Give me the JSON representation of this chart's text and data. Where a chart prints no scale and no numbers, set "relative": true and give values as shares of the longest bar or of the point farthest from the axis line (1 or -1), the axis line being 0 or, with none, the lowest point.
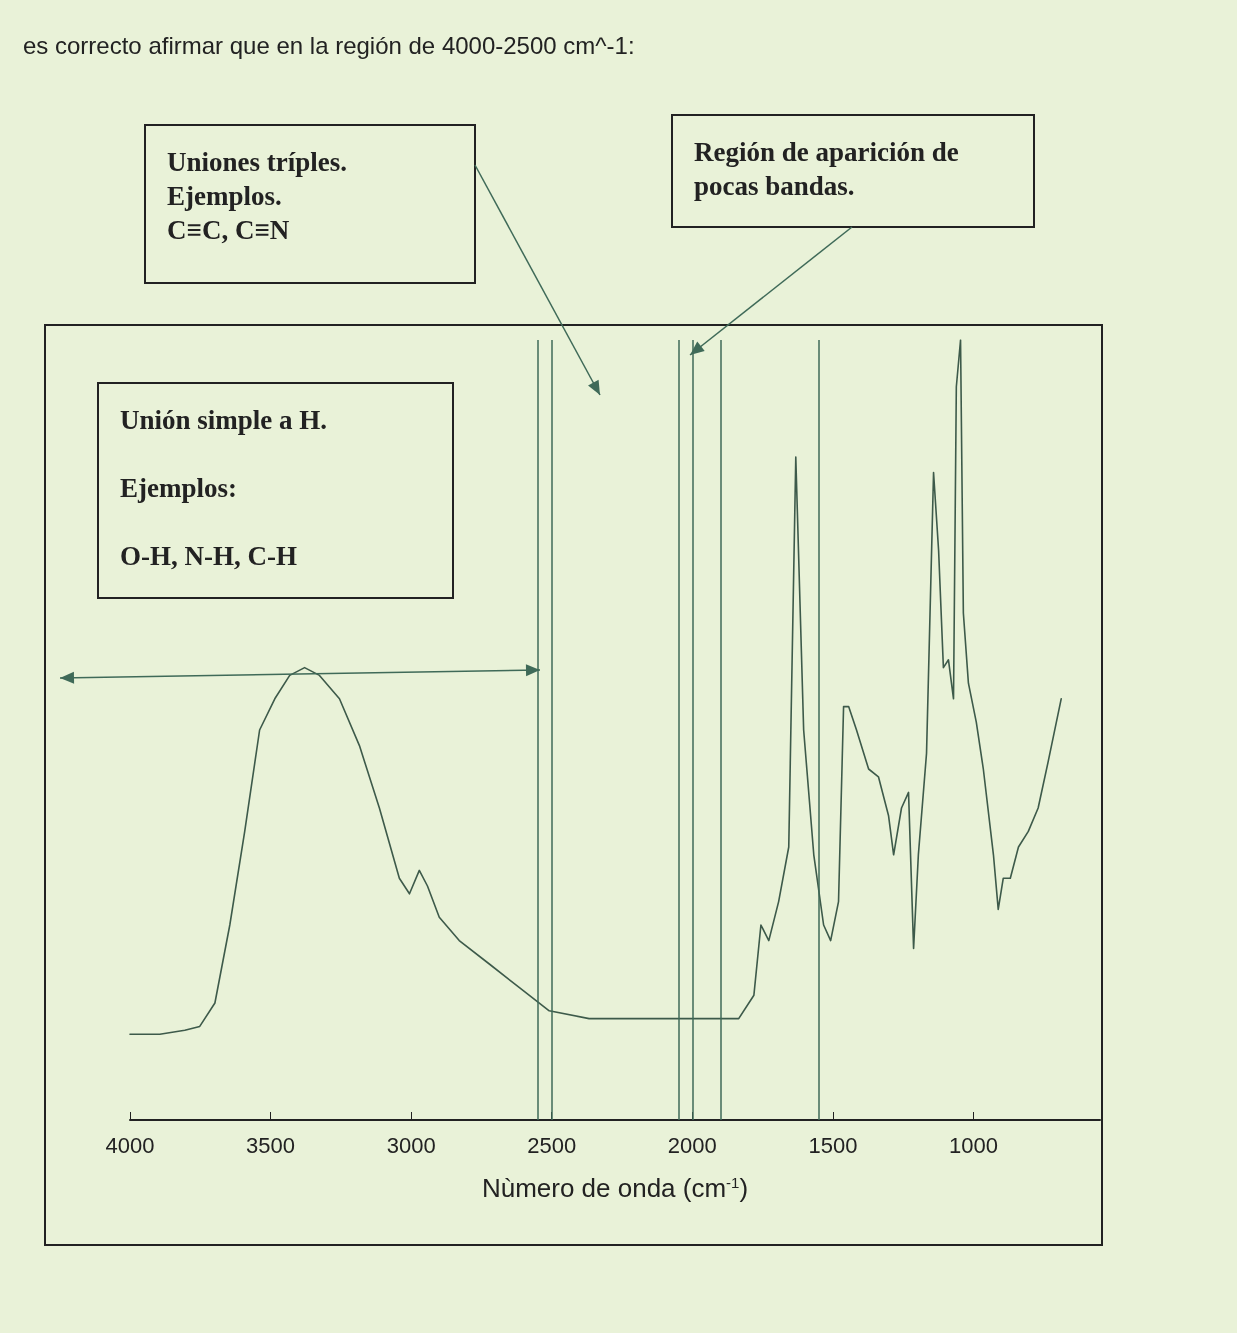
{
  "chart_data": {
    "type": "line",
    "title": "es correcto afirmar que en la región de 4000-2500 cm^-1:",
    "xlabel": "Nùmero de onda (cm$^{-1}$)",
    "relative": true,
    "xlim": [
      4000,
      550
    ],
    "xticks": [
      4000,
      3500,
      3000,
      2500,
      2000,
      1500,
      1000
    ],
    "grid": false,
    "marker": "none",
    "line_style": "solid",
    "annotations": [
      "Uniones tríples.\nEjemplos.\nC≡C, C≡N",
      "Región de aparición de\npocas bandas.",
      "Unión simple a H.\n\nEjemplos:\n\nO-H, N-H, C-H"
    ],
    "ref_lines": [
      {
        "axis": "x",
        "value": 2550,
        "color": "#3f6a58"
      },
      {
        "axis": "x",
        "value": 2500,
        "color": "#3f6a58"
      },
      {
        "axis": "x",
        "value": 2050,
        "color": "#3f6a58"
      },
      {
        "axis": "x",
        "value": 2000,
        "color": "#3f6a58"
      },
      {
        "axis": "x",
        "value": 1900,
        "color": "#3f6a58"
      },
      {
        "axis": "x",
        "value": 1550,
        "color": "#3f6a58"
      }
    ],
    "series": [
      {
        "color": "#3d5a4a",
        "x": [
          4000,
          3894,
          3805,
          3752,
          3698,
          3645,
          3592,
          3539,
          3485,
          3432,
          3379,
          3326,
          3255,
          3184,
          3113,
          3042,
          3006,
          2971,
          2942,
          2900,
          2829,
          2722,
          2616,
          2509,
          2367,
          2260,
          2048,
          1835,
          1781,
          1756,
          1728,
          1693,
          1657,
          1632,
          1604,
          1568,
          1533,
          1508,
          1480,
          1462,
          1444,
          1416,
          1373,
          1338,
          1302,
          1284,
          1256,
          1231,
          1213,
          1196,
          1167,
          1142,
          1124,
          1107,
          1089,
          1071,
          1061,
          1046,
          1036,
          1018,
          990,
          965,
          929,
          912,
          894,
          869,
          840,
          805,
          770,
          734,
          688
        ],
        "values": [
          0.11,
          0.11,
          0.115,
          0.12,
          0.15,
          0.25,
          0.37,
          0.5,
          0.54,
          0.57,
          0.58,
          0.57,
          0.54,
          0.48,
          0.4,
          0.31,
          0.29,
          0.32,
          0.3,
          0.26,
          0.23,
          0.2,
          0.17,
          0.14,
          0.13,
          0.13,
          0.13,
          0.13,
          0.16,
          0.25,
          0.23,
          0.28,
          0.35,
          0.85,
          0.5,
          0.34,
          0.25,
          0.23,
          0.28,
          0.53,
          0.53,
          0.5,
          0.45,
          0.44,
          0.39,
          0.34,
          0.4,
          0.42,
          0.22,
          0.34,
          0.47,
          0.83,
          0.73,
          0.58,
          0.59,
          0.54,
          0.94,
          1,
          0.65,
          0.56,
          0.51,
          0.45,
          0.34,
          0.27,
          0.31,
          0.31,
          0.35,
          0.37,
          0.4,
          0.46,
          0.54
        ]
      }
    ]
  }
}
